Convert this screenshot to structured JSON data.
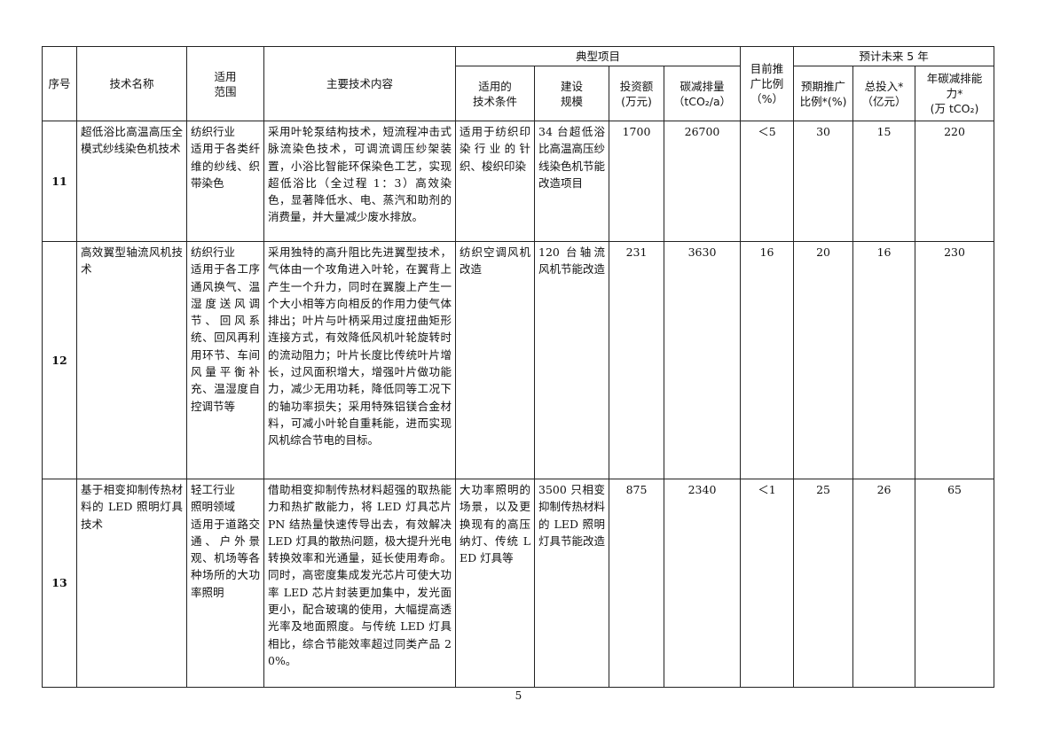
{
  "header": {
    "index": "序号",
    "name": "技术名称",
    "scope": "适用\n范围",
    "content": "主要技术内容",
    "typical": "典型项目",
    "conditions": "适用的\n技术条件",
    "scale": "建设\n规模",
    "investment": "投资额\n(万元)",
    "reduction": "碳减排量\n（tCO₂/a）",
    "current_ratio": "目前推\n广比例\n（%）",
    "forecast": "预计未来 5 年",
    "expected_ratio": "预期推广\n比例*(%)",
    "total_invest": "总投入*\n（亿元）",
    "annual_capacity": "年碳减排能\n力*\n(万 tCO₂)"
  },
  "rows": [
    {
      "index": "11",
      "name": "超低浴比高温高压全模式纱线染色机技术",
      "scope": "纺织行业\n适用于各类纤维的纱线、织带染色",
      "content": "采用叶轮泵结构技术，短流程冲击式脉流染色技术，可调流调压纱架装置，小浴比智能环保染色工艺，实现超低浴比（全过程 1：3）高效染色，显著降低水、电、蒸汽和助剂的消费量，并大量减少废水排放。",
      "conditions": "适用于纺织印染行业的针织、梭织印染",
      "scale": "34 台超低浴比高温高压纱线染色机节能改造项目",
      "investment": "1700",
      "reduction": "26700",
      "current_ratio": "＜5",
      "expected_ratio": "30",
      "total_invest": "15",
      "annual_capacity": "220"
    },
    {
      "index": "12",
      "name": "高效翼型轴流风机技术",
      "scope": "纺织行业\n适用于各工序通风换气、温湿度送风调节、回风系统、回风再利用环节、车间风量平衡补充、温湿度自控调节等",
      "content": "采用独特的高升阻比先进翼型技术，气体由一个攻角进入叶轮，在翼背上产生一个升力，同时在翼腹上产生一个大小相等方向相反的作用力使气体排出；叶片与叶柄采用过度扭曲矩形连接方式，有效降低风机叶轮旋转时的流动阻力；叶片长度比传统叶片增长，过风面积增大，增强叶片做功能力，减少无用功耗，降低同等工况下的轴功率损失；采用特殊铝镁合金材料，可减小叶轮自重耗能，进而实现风机综合节电的目标。",
      "conditions": "纺织空调风机改造",
      "scale": "120 台轴流风机节能改造",
      "investment": "231",
      "reduction": "3630",
      "current_ratio": "16",
      "expected_ratio": "20",
      "total_invest": "16",
      "annual_capacity": "230"
    },
    {
      "index": "13",
      "name": "基于相变抑制传热材料的 LED 照明灯具技术",
      "scope": "轻工行业\n照明领域\n适用于道路交通、户外景观、机场等各种场所的大功率照明",
      "content": "借助相变抑制传热材料超强的取热能力和热扩散能力，将 LED 灯具芯片 PN 结热量快速传导出去，有效解决 LED 灯具的散热问题，极大提升光电转换效率和光通量，延长使用寿命。同时，高密度集成发光芯片可使大功率 LED 芯片封装更加集中，发光面更小，配合玻璃的使用，大幅提高透光率及地面照度。与传统 LED 灯具相比，综合节能效率超过同类产品 20%。",
      "conditions": "大功率照明的场景，以及更换现有的高压纳灯、传统 LED 灯具等",
      "scale": "3500 只相变抑制传热材料的 LED 照明灯具节能改造",
      "investment": "875",
      "reduction": "2340",
      "current_ratio": "＜1",
      "expected_ratio": "25",
      "total_invest": "26",
      "annual_capacity": "65"
    }
  ],
  "page_number": "5"
}
